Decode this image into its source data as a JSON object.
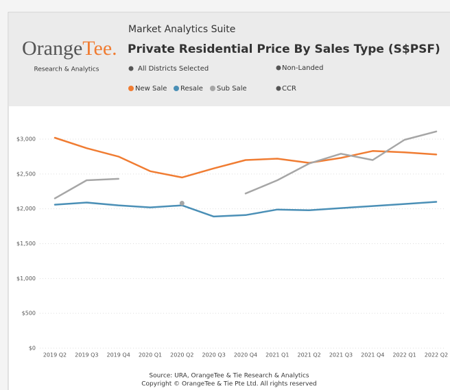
{
  "header": {
    "logo": [
      "Orange",
      "Tee."
    ],
    "tagline": "Research & Analytics",
    "suite": "Market Analytics Suite",
    "filters": [
      "All Districts Selected",
      "Non-Landed",
      "CCR"
    ]
  },
  "chart_data": {
    "type": "line",
    "title": "Private Residential Price By Sales Type (S$PSF)",
    "categories": [
      "2019 Q2",
      "2019 Q3",
      "2019 Q4",
      "2020 Q1",
      "2020 Q2",
      "2020 Q3",
      "2020 Q4",
      "2021 Q1",
      "2021 Q2",
      "2021 Q3",
      "2021 Q4",
      "2022 Q1",
      "2022 Q2"
    ],
    "series": [
      {
        "name": "New Sale",
        "color": "#f07c32",
        "values": [
          3020,
          2870,
          2750,
          2540,
          2450,
          2580,
          2700,
          2720,
          2660,
          2730,
          2830,
          2810,
          2780
        ]
      },
      {
        "name": "Resale",
        "color": "#4a8fb6",
        "values": [
          2060,
          2090,
          2050,
          2020,
          2050,
          1890,
          1910,
          1990,
          1980,
          2010,
          2040,
          2070,
          2100
        ]
      },
      {
        "name": "Sub Sale",
        "color": "#a6a6a6",
        "values": [
          2150,
          2410,
          2430,
          null,
          2080,
          null,
          2220,
          2410,
          2650,
          2790,
          2700,
          2990,
          3110
        ]
      }
    ],
    "ylim": [
      0,
      3000
    ],
    "yticks": [
      {
        "value": 0,
        "label": "$0"
      },
      {
        "value": 500,
        "label": "$500"
      },
      {
        "value": 1000,
        "label": "$1,000"
      },
      {
        "value": 1500,
        "label": "$1,500"
      },
      {
        "value": 2000,
        "label": "$2,000"
      },
      {
        "value": 2500,
        "label": "$2,500"
      },
      {
        "value": 3000,
        "label": "$3,000"
      }
    ],
    "grid": true
  },
  "footer": [
    "Source: URA, OrangeTee & Tie Research & Analytics",
    "Copyright © OrangeTee & Tie Pte Ltd. All rights reserved"
  ]
}
